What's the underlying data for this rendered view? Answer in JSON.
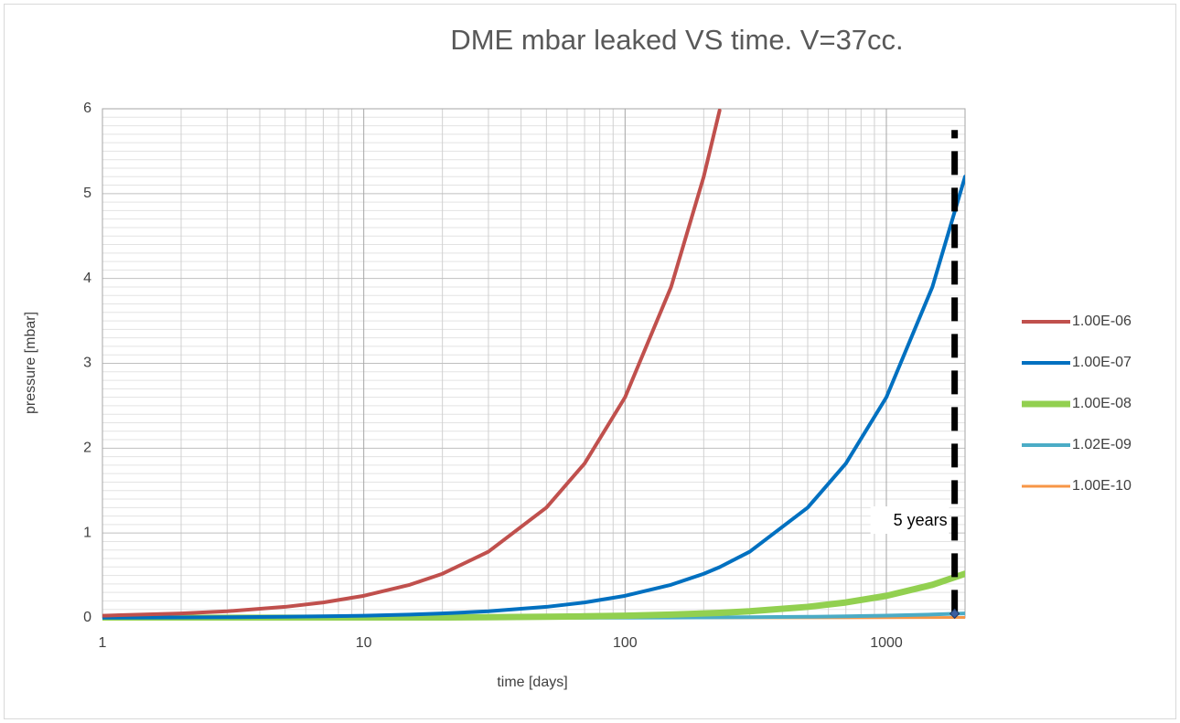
{
  "chart_data": {
    "type": "line",
    "title": "DME mbar leaked VS time. V=37cc.",
    "x_label": "time [days]",
    "y_label": "pressure [mbar]",
    "x_scale": "log",
    "xlim": [
      1,
      2000
    ],
    "xticks": [
      1,
      10,
      100,
      1000
    ],
    "ylim": [
      0,
      6
    ],
    "yticks": [
      0,
      1,
      2,
      3,
      4,
      5,
      6
    ],
    "grid": true,
    "minor_grid": true,
    "y_minor_divisions": 10,
    "legend": "right",
    "x": [
      1,
      2,
      3,
      5,
      7,
      10,
      15,
      20,
      30,
      50,
      70,
      100,
      150,
      200,
      230,
      300,
      500,
      700,
      1000,
      1500,
      2000
    ],
    "series": [
      {
        "name": "1.00E-06",
        "color": "#c0504d",
        "width": 4,
        "values": [
          0.026,
          0.052,
          0.078,
          0.13,
          0.182,
          0.26,
          0.39,
          0.52,
          0.78,
          1.3,
          1.82,
          2.6,
          3.9,
          5.2,
          5.98,
          null,
          null,
          null,
          null,
          null,
          null
        ]
      },
      {
        "name": "1.00E-07",
        "color": "#0070c0",
        "width": 4,
        "values": [
          0.0026,
          0.0052,
          0.0078,
          0.013,
          0.0182,
          0.026,
          0.039,
          0.052,
          0.078,
          0.13,
          0.182,
          0.26,
          0.39,
          0.52,
          0.598,
          0.78,
          1.3,
          1.82,
          2.6,
          3.9,
          5.2
        ]
      },
      {
        "name": "1.00E-08",
        "color": "#92d050",
        "width": 7,
        "values": [
          0.00026,
          0.00052,
          0.00078,
          0.0013,
          0.00182,
          0.0026,
          0.0039,
          0.0052,
          0.0078,
          0.013,
          0.0182,
          0.026,
          0.039,
          0.052,
          0.0598,
          0.078,
          0.13,
          0.182,
          0.26,
          0.39,
          0.52
        ]
      },
      {
        "name": "1.02E-09",
        "color": "#4bacc6",
        "width": 4,
        "values": [
          2.65e-05,
          5.3e-05,
          7.95e-05,
          0.0001325,
          0.0001855,
          0.000265,
          0.0003975,
          0.00053,
          0.000795,
          0.001325,
          0.001855,
          0.00265,
          0.003975,
          0.0053,
          0.006095,
          0.00795,
          0.01325,
          0.01855,
          0.0265,
          0.03975,
          0.053
        ]
      },
      {
        "name": "1.00E-10",
        "color": "#f79646",
        "width": 3,
        "values": [
          2.6e-06,
          5.2e-06,
          7.8e-06,
          1.3e-05,
          1.82e-05,
          2.6e-05,
          3.9e-05,
          5.2e-05,
          7.8e-05,
          0.00013,
          0.000182,
          0.00026,
          0.00039,
          0.00052,
          0.000598,
          0.00078,
          0.0013,
          0.00182,
          0.0026,
          0.0039,
          0.0052
        ]
      }
    ],
    "annotation": {
      "text": "5 years",
      "x": 1825,
      "y": [
        0.05,
        5.75
      ]
    }
  }
}
